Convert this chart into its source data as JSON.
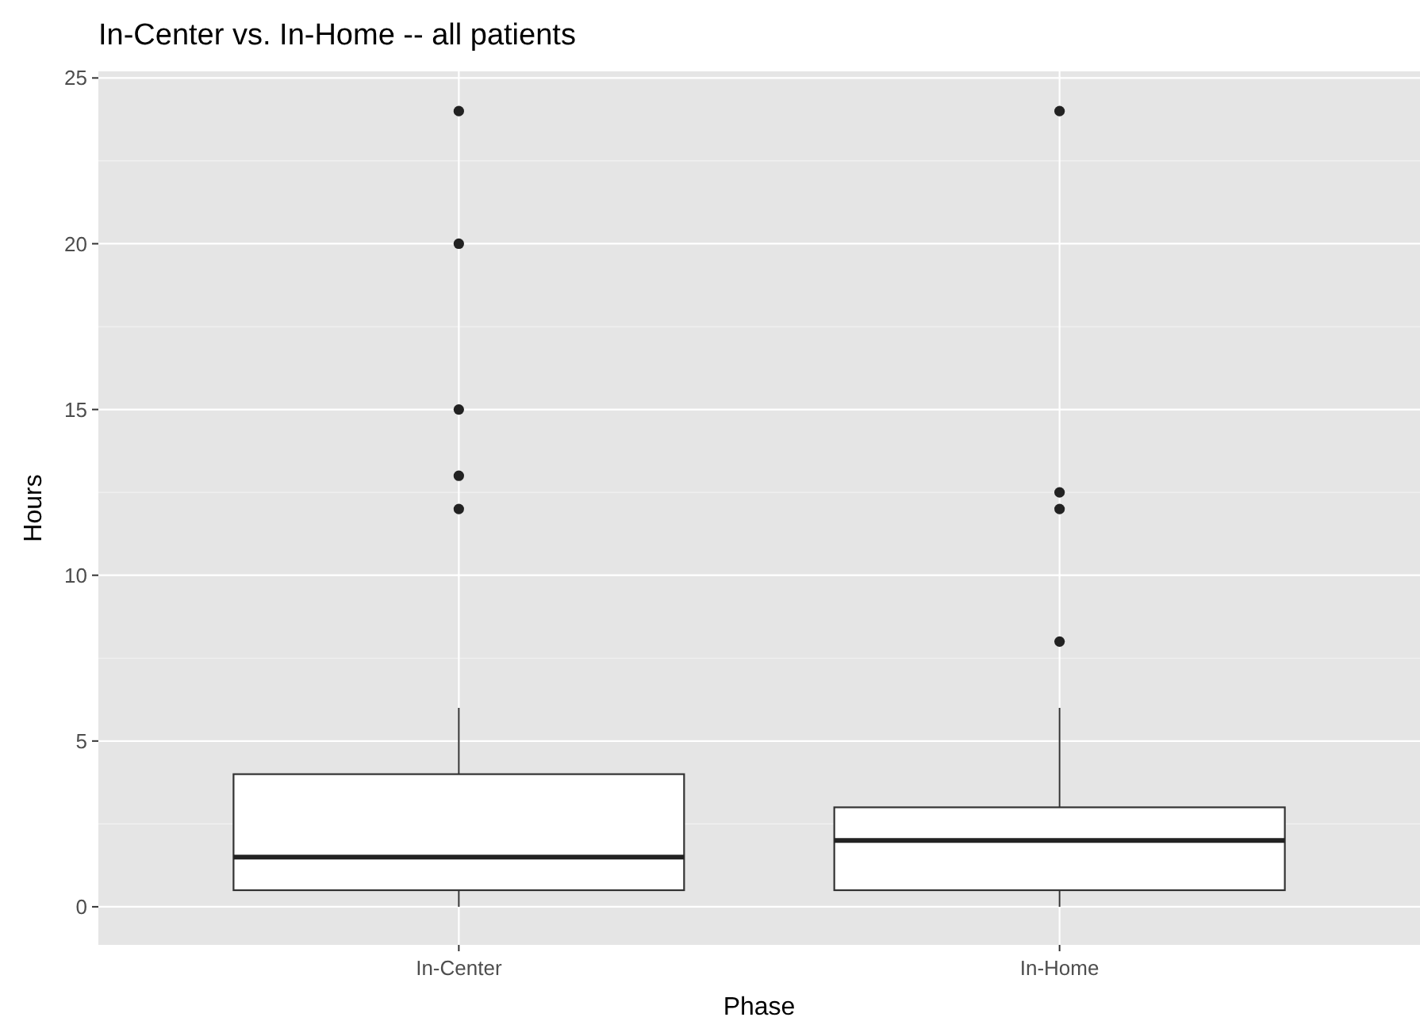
{
  "chart_data": {
    "type": "box",
    "title": "In-Center vs. In-Home -- all patients",
    "xlabel": "Phase",
    "ylabel": "Hours",
    "categories": [
      "In-Center",
      "In-Home"
    ],
    "boxes": [
      {
        "low": 0,
        "q1": 0.5,
        "median": 1.5,
        "q3": 4,
        "high": 6,
        "outliers": [
          12,
          13,
          15,
          20,
          24
        ]
      },
      {
        "low": 0,
        "q1": 0.5,
        "median": 2,
        "q3": 3,
        "high": 6,
        "outliers": [
          8,
          12,
          12.5,
          24
        ]
      }
    ],
    "ylim": [
      -1.15,
      25.2
    ],
    "yticks": [
      0,
      5,
      10,
      15,
      20,
      25
    ],
    "grid": true
  }
}
